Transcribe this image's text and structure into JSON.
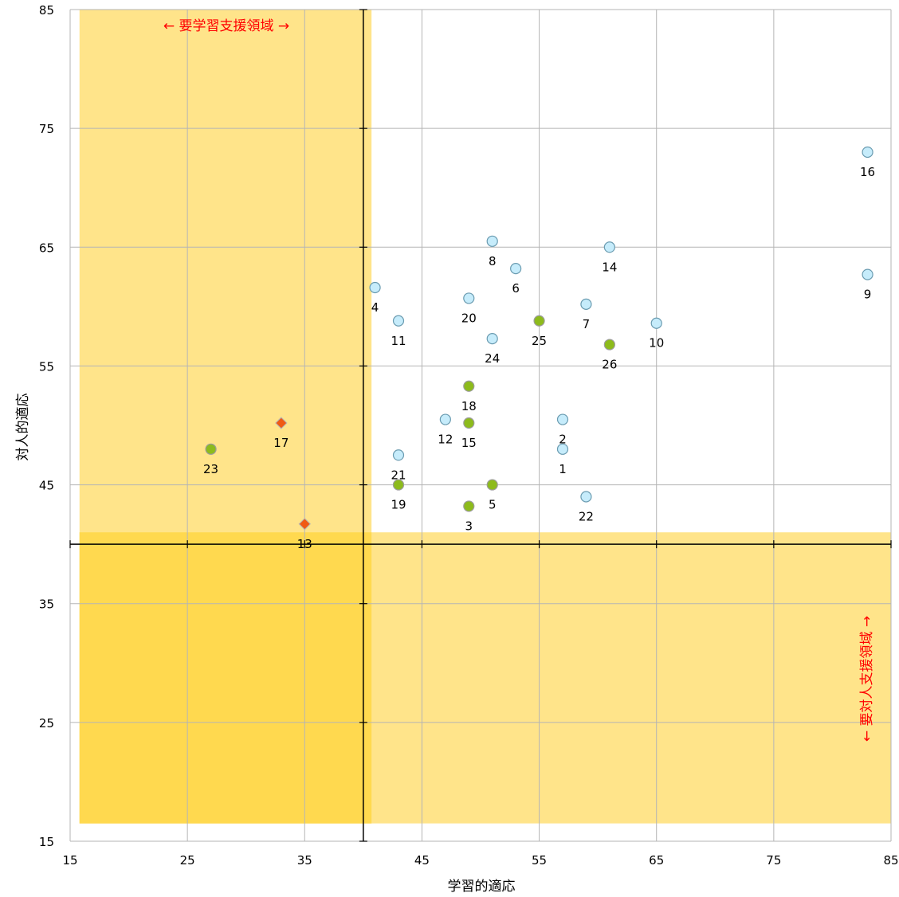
{
  "chart_data": {
    "type": "scatter",
    "title": "",
    "xlabel": "学習的適応",
    "ylabel": "対人的適応",
    "xlim": [
      15,
      85
    ],
    "ylim": [
      15,
      85
    ],
    "x_ticks": [
      "15",
      "25",
      "35",
      "45",
      "55",
      "65",
      "75",
      "85"
    ],
    "y_ticks": [
      "15",
      "25",
      "35",
      "45",
      "55",
      "65",
      "75",
      "85"
    ],
    "grid": true,
    "reference_lines": {
      "x": 40,
      "y": 40
    },
    "regions": [
      {
        "name": "learning-support",
        "x_range": [
          15.8,
          40.7
        ],
        "y_range": [
          16.5,
          85
        ],
        "color": "#ffe48a"
      },
      {
        "name": "interpersonal-support",
        "x_range": [
          15.8,
          85
        ],
        "y_range": [
          16.5,
          41
        ],
        "color": "#ffe48a"
      },
      {
        "name": "overlap",
        "x_range": [
          15.8,
          40.7
        ],
        "y_range": [
          16.5,
          41
        ],
        "color": "#ffd94f"
      }
    ],
    "annotations": {
      "learning_support_label": "← 要学習支援領域 →",
      "interpersonal_support_label": "← 要対人支援領域 →"
    },
    "marker_colors": {
      "circle_light": "#c6ecfb",
      "circle_green": "#8dbb1c",
      "diamond_orange": "#f05a14"
    },
    "points": [
      {
        "label": "1",
        "x": 57,
        "y": 48,
        "marker": "circle_light"
      },
      {
        "label": "2",
        "x": 57,
        "y": 50.5,
        "marker": "circle_light"
      },
      {
        "label": "3",
        "x": 49,
        "y": 43.2,
        "marker": "circle_green"
      },
      {
        "label": "4",
        "x": 41,
        "y": 61.6,
        "marker": "circle_light"
      },
      {
        "label": "5",
        "x": 51,
        "y": 45,
        "marker": "circle_green"
      },
      {
        "label": "6",
        "x": 53,
        "y": 63.2,
        "marker": "circle_light"
      },
      {
        "label": "7",
        "x": 59,
        "y": 60.2,
        "marker": "circle_light"
      },
      {
        "label": "8",
        "x": 51,
        "y": 65.5,
        "marker": "circle_light"
      },
      {
        "label": "9",
        "x": 83,
        "y": 62.7,
        "marker": "circle_light"
      },
      {
        "label": "10",
        "x": 65,
        "y": 58.6,
        "marker": "circle_light"
      },
      {
        "label": "11",
        "x": 43,
        "y": 58.8,
        "marker": "circle_light"
      },
      {
        "label": "12",
        "x": 47,
        "y": 50.5,
        "marker": "circle_light"
      },
      {
        "label": "13",
        "x": 35,
        "y": 41.7,
        "marker": "diamond_orange"
      },
      {
        "label": "14",
        "x": 61,
        "y": 65,
        "marker": "circle_light"
      },
      {
        "label": "15",
        "x": 49,
        "y": 50.2,
        "marker": "circle_green"
      },
      {
        "label": "16",
        "x": 83,
        "y": 73,
        "marker": "circle_light"
      },
      {
        "label": "17",
        "x": 33,
        "y": 50.2,
        "marker": "diamond_orange"
      },
      {
        "label": "18",
        "x": 49,
        "y": 53.3,
        "marker": "circle_green"
      },
      {
        "label": "19",
        "x": 43,
        "y": 45,
        "marker": "circle_green"
      },
      {
        "label": "20",
        "x": 49,
        "y": 60.7,
        "marker": "circle_light"
      },
      {
        "label": "21",
        "x": 43,
        "y": 47.5,
        "marker": "circle_light"
      },
      {
        "label": "22",
        "x": 59,
        "y": 44,
        "marker": "circle_light"
      },
      {
        "label": "23",
        "x": 27,
        "y": 48,
        "marker": "circle_green"
      },
      {
        "label": "24",
        "x": 51,
        "y": 57.3,
        "marker": "circle_light"
      },
      {
        "label": "25",
        "x": 55,
        "y": 58.8,
        "marker": "circle_green"
      },
      {
        "label": "26",
        "x": 61,
        "y": 56.8,
        "marker": "circle_green"
      }
    ]
  }
}
